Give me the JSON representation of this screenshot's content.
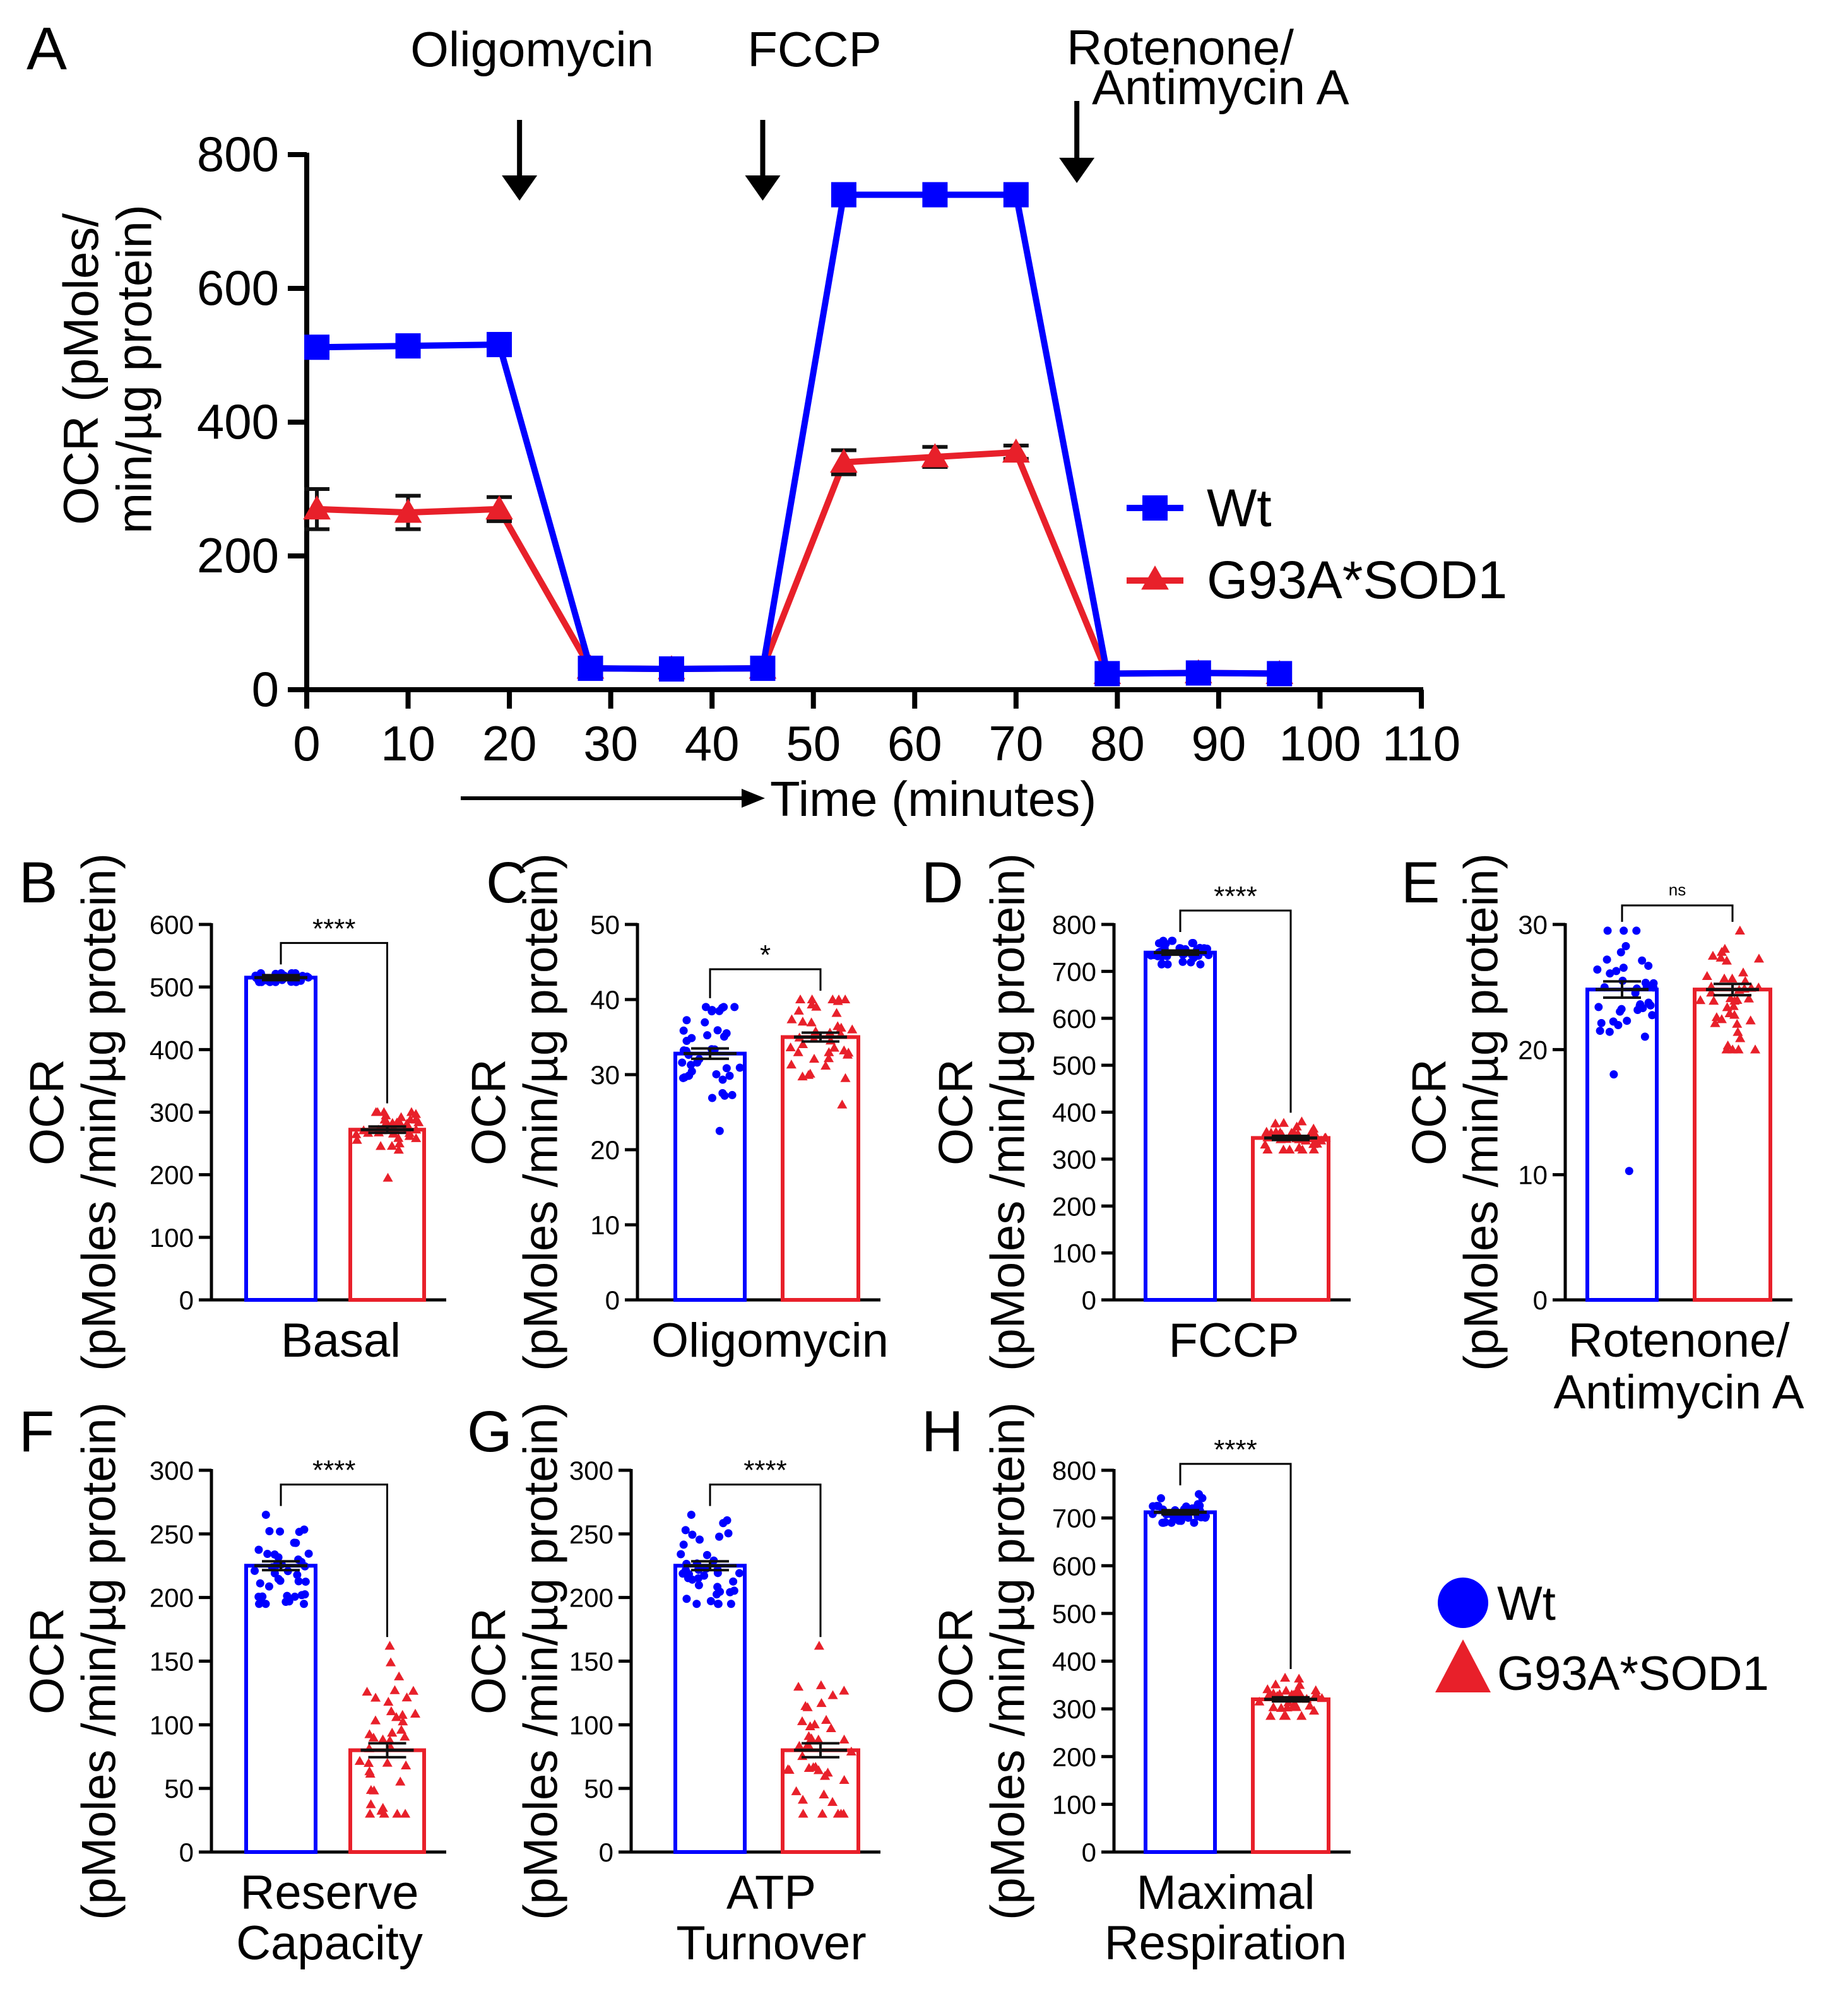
{
  "colors": {
    "wt": "#0000ff",
    "mut": "#e8202a",
    "axis": "#000000",
    "err": "#111111"
  },
  "legend_bottom": {
    "wt_label": "Wt",
    "mut_label": "G93A*SOD1",
    "wt_marker": "circle",
    "mut_marker": "triangle"
  },
  "chart_data": [
    {
      "panel": "A",
      "type": "line",
      "xlabel": "Time (minutes)",
      "ylabel": "OCR (pMoles/ min/µg protein)",
      "xlim": [
        0,
        110
      ],
      "ylim": [
        0,
        800
      ],
      "xticks": [
        0,
        10,
        20,
        30,
        40,
        50,
        60,
        70,
        80,
        90,
        100,
        110
      ],
      "yticks": [
        0,
        200,
        400,
        600,
        800
      ],
      "grid": false,
      "legend": "right",
      "annotations": [
        {
          "label": "Oligomycin",
          "x": 21
        },
        {
          "label": "FCCP",
          "x": 45
        },
        {
          "label": "Rotenone/ Antimycin A",
          "x": 76
        }
      ],
      "series": [
        {
          "name": "Wt",
          "marker": "square",
          "x": [
            1,
            10,
            19,
            28,
            36,
            45,
            53,
            62,
            70,
            79,
            88,
            96
          ],
          "y": [
            512,
            514,
            516,
            32,
            31,
            32,
            740,
            740,
            740,
            24,
            25,
            24
          ],
          "err": [
            6,
            5,
            5,
            2,
            2,
            2,
            6,
            5,
            6,
            2,
            2,
            2
          ]
        },
        {
          "name": "G93A*SOD1",
          "marker": "triangle",
          "x": [
            1,
            10,
            19,
            28,
            36,
            45,
            53,
            62,
            70,
            79,
            88,
            96
          ],
          "y": [
            270,
            265,
            270,
            32,
            31,
            32,
            340,
            348,
            355,
            24,
            25,
            24
          ],
          "err": [
            30,
            25,
            18,
            2,
            2,
            2,
            18,
            15,
            10,
            2,
            2,
            2
          ]
        }
      ]
    },
    {
      "panel": "B",
      "type": "bar",
      "xlabel": "Basal",
      "ylabel": "OCR (pMoles /min/µg protein)",
      "ylim": [
        0,
        600
      ],
      "yticks": [
        0,
        100,
        200,
        300,
        400,
        500,
        600
      ],
      "significance": "****",
      "series": [
        {
          "name": "Wt",
          "mean": 515,
          "sem": 3,
          "n": 40,
          "min": 508,
          "max": 522
        },
        {
          "name": "G93A*SOD1",
          "mean": 272,
          "sem": 4,
          "n": 40,
          "min": 195,
          "max": 300
        }
      ]
    },
    {
      "panel": "C",
      "type": "bar",
      "xlabel": "Oligomycin",
      "ylabel": "OCR (pMoles /min/µg protein)",
      "ylim": [
        0,
        50
      ],
      "yticks": [
        0,
        10,
        20,
        30,
        40,
        50
      ],
      "significance": "*",
      "series": [
        {
          "name": "Wt",
          "mean": 32.8,
          "sem": 0.6,
          "n": 40,
          "min": 22.5,
          "max": 39
        },
        {
          "name": "G93A*SOD1",
          "mean": 35.0,
          "sem": 0.5,
          "n": 40,
          "min": 26,
          "max": 40
        }
      ]
    },
    {
      "panel": "D",
      "type": "bar",
      "xlabel": "FCCP",
      "ylabel": "OCR (pMoles /min/µg protein)",
      "ylim": [
        0,
        800
      ],
      "yticks": [
        0,
        100,
        200,
        300,
        400,
        500,
        600,
        700,
        800
      ],
      "significance": "****",
      "series": [
        {
          "name": "Wt",
          "mean": 740,
          "sem": 3,
          "n": 40,
          "min": 715,
          "max": 765
        },
        {
          "name": "G93A*SOD1",
          "mean": 345,
          "sem": 3,
          "n": 40,
          "min": 320,
          "max": 380
        }
      ]
    },
    {
      "panel": "E",
      "type": "bar",
      "xlabel": "Rotenone/ Antimycin A",
      "ylabel": "OCR (pMoles /min/µg protein)",
      "ylim": [
        0,
        30
      ],
      "yticks": [
        0,
        10,
        20,
        30
      ],
      "significance": "ns",
      "series": [
        {
          "name": "Wt",
          "mean": 24.8,
          "sem": 0.6,
          "n": 40,
          "min": 10.3,
          "max": 29.5
        },
        {
          "name": "G93A*SOD1",
          "mean": 24.8,
          "sem": 0.4,
          "n": 40,
          "min": 20,
          "max": 29.5
        }
      ]
    },
    {
      "panel": "F",
      "type": "bar",
      "xlabel": "Reserve Capacity",
      "ylabel": "OCR (pMoles /min/µg protein)",
      "ylim": [
        0,
        300
      ],
      "yticks": [
        0,
        50,
        100,
        150,
        200,
        250,
        300
      ],
      "significance": "****",
      "series": [
        {
          "name": "Wt",
          "mean": 225,
          "sem": 3,
          "n": 40,
          "min": 195,
          "max": 265
        },
        {
          "name": "G93A*SOD1",
          "mean": 80,
          "sem": 5,
          "n": 40,
          "min": 30,
          "max": 162
        }
      ]
    },
    {
      "panel": "G",
      "type": "bar",
      "xlabel": "ATP Turnover",
      "ylabel": "OCR (pMoles /min/µg protein)",
      "ylim": [
        0,
        300
      ],
      "yticks": [
        0,
        50,
        100,
        150,
        200,
        250,
        300
      ],
      "significance": "****",
      "series": [
        {
          "name": "Wt",
          "mean": 225,
          "sem": 3,
          "n": 40,
          "min": 195,
          "max": 265
        },
        {
          "name": "G93A*SOD1",
          "mean": 80,
          "sem": 5,
          "n": 40,
          "min": 30,
          "max": 162
        }
      ]
    },
    {
      "panel": "H",
      "type": "bar",
      "xlabel": "Maximal Respiration",
      "ylabel": "OCR (pMoles /min/µg protein)",
      "ylim": [
        0,
        800
      ],
      "yticks": [
        0,
        100,
        200,
        300,
        400,
        500,
        600,
        700,
        800
      ],
      "significance": "****",
      "series": [
        {
          "name": "Wt",
          "mean": 712,
          "sem": 3,
          "n": 40,
          "min": 690,
          "max": 750
        },
        {
          "name": "G93A*SOD1",
          "mean": 320,
          "sem": 3,
          "n": 40,
          "min": 285,
          "max": 365
        }
      ]
    }
  ]
}
